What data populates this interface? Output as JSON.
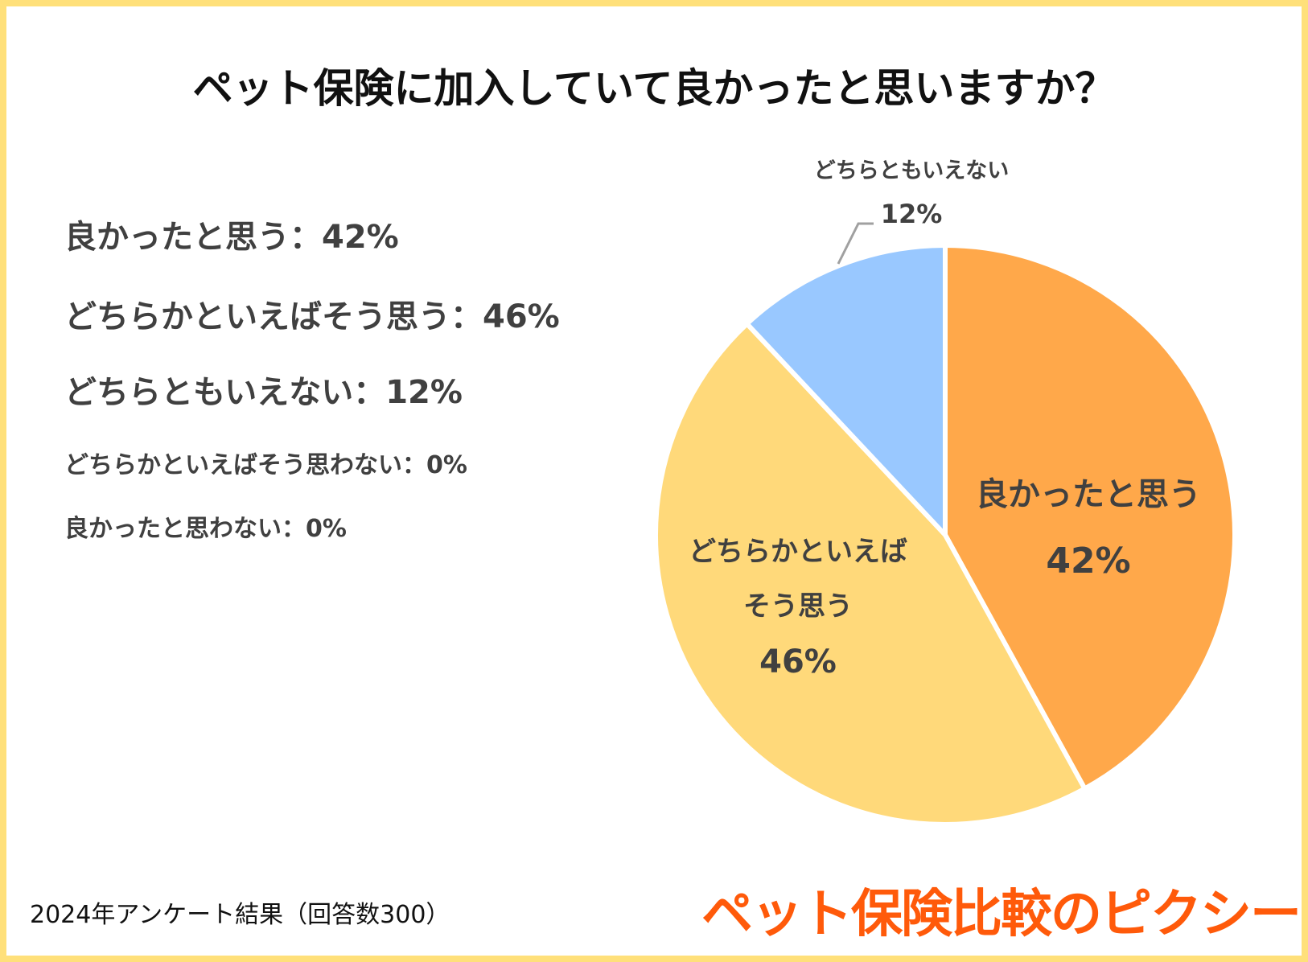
{
  "chart_data": {
    "type": "pie",
    "title": "ペット保険に加入していて良かったと思いますか？",
    "categories": [
      "良かったと思う",
      "どちらかといえばそう思う",
      "どちらともいえない",
      "どちらかといえばそう思わない",
      "良かったと思わない"
    ],
    "values": [
      42,
      46,
      12,
      0,
      0
    ],
    "colors": [
      "#FFA84A",
      "#FFD97A",
      "#99C8FF"
    ],
    "slice_labels": [
      {
        "lines": [
          "良かったと思う",
          "42%"
        ]
      },
      {
        "lines": [
          "どちらかといえば",
          "そう思う",
          "46%"
        ]
      },
      {
        "lines": [
          "どちらともいえない",
          "12%"
        ]
      }
    ],
    "legend_lines": [
      "良かったと思う：42%",
      "どちらかといえばそう思う：46%",
      "どちらともいえない：12%",
      "どちらかといえばそう思わない：0%",
      "良かったと思わない：0%"
    ]
  },
  "footer": "2024年アンケート結果（回答数300）",
  "logo": "ペット保険比較のピクシー"
}
